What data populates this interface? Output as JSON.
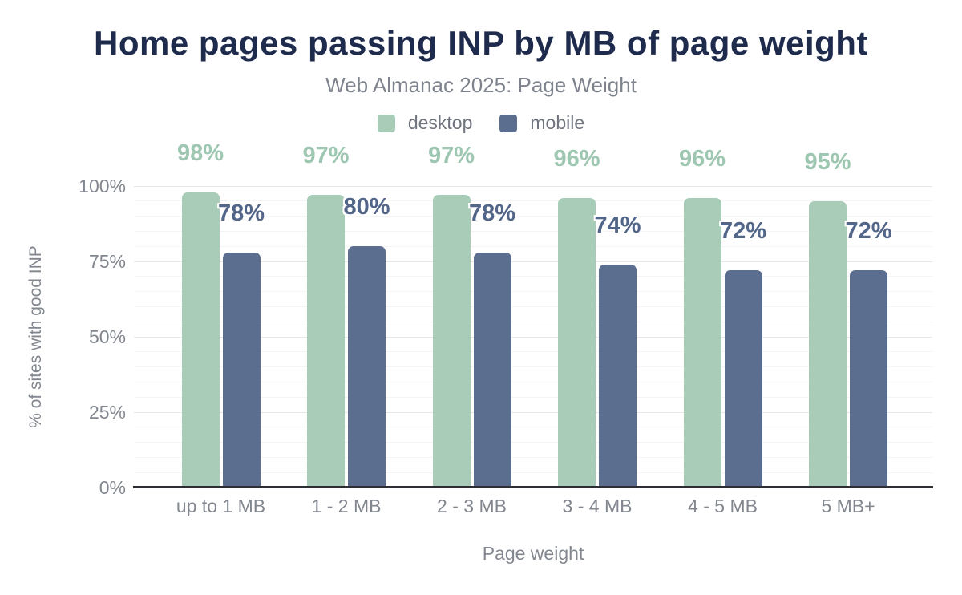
{
  "title": "Home pages passing INP by MB of page weight",
  "subtitle": "Web Almanac 2025: Page Weight",
  "colors": {
    "background": "#ffffff",
    "title": "#1e2b4d",
    "subtitle": "#7e838d",
    "axis_text": "#82878f",
    "axis_line": "#2c2e33",
    "grid_major": "#e7e7e7",
    "grid_minor": "#f4f4f4"
  },
  "legend": {
    "items": [
      {
        "label": "desktop",
        "color": "#a8ccb8"
      },
      {
        "label": "mobile",
        "color": "#5b6e8f"
      }
    ]
  },
  "chart_data": {
    "type": "bar",
    "title": "Home pages passing INP by MB of page weight",
    "subtitle": "Web Almanac 2025: Page Weight",
    "categories": [
      "up to 1 MB",
      "1 - 2 MB",
      "2 - 3 MB",
      "3 - 4 MB",
      "4 - 5 MB",
      "5 MB+"
    ],
    "series": [
      {
        "name": "desktop",
        "values": [
          98,
          97,
          97,
          96,
          96,
          95
        ],
        "color": "#a8ccb8",
        "label_color": "#9ec7b1"
      },
      {
        "name": "mobile",
        "values": [
          78,
          80,
          78,
          74,
          72,
          72
        ],
        "color": "#5b6e8f",
        "label_color": "#52668a"
      }
    ],
    "value_suffix": "%",
    "xlabel": "Page weight",
    "ylabel": "% of sites with good INP",
    "ylim": [
      0,
      100
    ],
    "yticks": [
      0,
      25,
      50,
      75,
      100
    ],
    "ytick_suffix": "%",
    "grid": "horizontal, minor every 5%, major every 25%",
    "legend_position": "top center",
    "data_labels": "above bars, colored per series with white halo"
  }
}
